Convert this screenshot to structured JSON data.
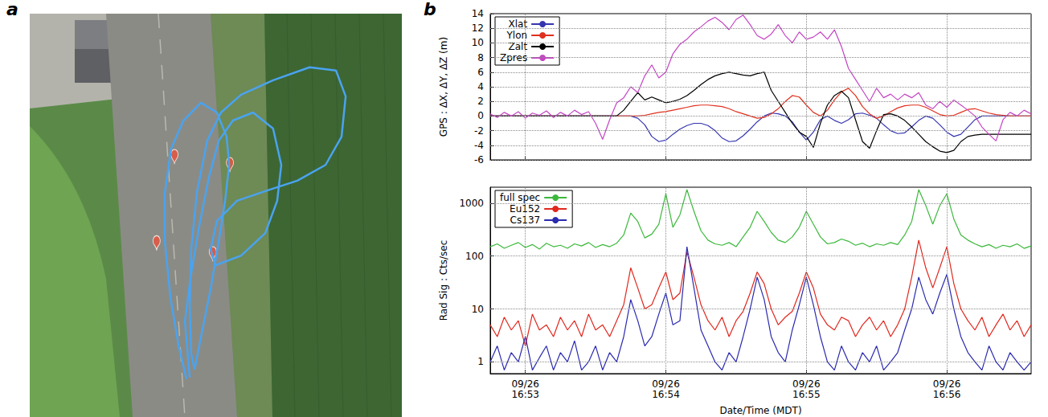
{
  "chart_data": [
    {
      "type": "line",
      "panel": "a",
      "x": [
        42.1,
        40.0,
        37.8,
        36.3,
        36.3,
        38.0,
        41.3,
        46.0,
        50.3,
        52.9,
        53.6,
        52.5,
        50.8,
        48.6,
        46.0,
        44.3,
        43.4,
        43.0,
        43.4,
        44.9,
        47.7,
        51.4,
        56.8,
        65.4,
        75.2,
        82.3,
        84.9,
        83.8,
        79.5,
        71.9,
        63.3,
        55.7,
        50.3,
        48.6,
        49.9,
        56.8,
        63.3,
        66.5,
        67.6,
        65.4,
        60.0,
        54.6,
        50.8,
        48.2,
        45.6,
        43.4,
        41.7,
        43.0
      ],
      "y": [
        9.4,
        17.7,
        29.7,
        43.6,
        55.6,
        66.5,
        73.5,
        77.9,
        75.5,
        69.5,
        62.5,
        53.6,
        43.6,
        31.7,
        19.7,
        11.8,
        15.7,
        27.7,
        41.6,
        55.6,
        68.5,
        75.5,
        79.9,
        83.5,
        86.7,
        85.9,
        79.5,
        69.5,
        62.5,
        58.6,
        56.0,
        53.6,
        48.6,
        41.6,
        37.6,
        40.0,
        45.6,
        53.6,
        62.5,
        71.5,
        75.5,
        73.5,
        68.5,
        59.6,
        47.6,
        35.7,
        23.7,
        9.8
      ],
      "color": "#4aa3ef",
      "points": {
        "x": [
          38.9,
          53.8,
          34.1,
          49.2
        ],
        "y": [
          60.6,
          58.6,
          39.2,
          36.5
        ],
        "color": "#e8533c",
        "marker": "pin"
      },
      "xlim": [
        0,
        100
      ],
      "ylim": [
        0,
        100
      ],
      "tick_labels": false
    },
    {
      "type": "line",
      "panel": "b",
      "ylabel": "GPS : ΔX, ΔY, ΔZ (m)",
      "x": [
        "16:52:45",
        "16:52:48",
        "16:52:51",
        "16:52:54",
        "16:52:57",
        "16:53:00",
        "16:53:03",
        "16:53:06",
        "16:53:09",
        "16:53:12",
        "16:53:15",
        "16:53:18",
        "16:53:21",
        "16:53:24",
        "16:53:27",
        "16:53:30",
        "16:53:33",
        "16:53:36",
        "16:53:39",
        "16:53:42",
        "16:53:45",
        "16:53:48",
        "16:53:51",
        "16:53:54",
        "16:53:57",
        "16:54:00",
        "16:54:03",
        "16:54:06",
        "16:54:09",
        "16:54:12",
        "16:54:15",
        "16:54:18",
        "16:54:21",
        "16:54:24",
        "16:54:27",
        "16:54:30",
        "16:54:33",
        "16:54:36",
        "16:54:39",
        "16:54:42",
        "16:54:45",
        "16:54:48",
        "16:54:51",
        "16:54:54",
        "16:54:57",
        "16:55:00",
        "16:55:03",
        "16:55:06",
        "16:55:09",
        "16:55:12",
        "16:55:15",
        "16:55:18",
        "16:55:21",
        "16:55:24",
        "16:55:27",
        "16:55:30",
        "16:55:33",
        "16:55:36",
        "16:55:39",
        "16:55:42",
        "16:55:45",
        "16:55:48",
        "16:55:51",
        "16:55:54",
        "16:55:57",
        "16:56:00",
        "16:56:03",
        "16:56:06",
        "16:56:09",
        "16:56:12",
        "16:56:15",
        "16:56:18",
        "16:56:21",
        "16:56:24",
        "16:56:27",
        "16:56:30",
        "16:56:33",
        "16:56:36"
      ],
      "series": [
        {
          "name": "Xlat",
          "color": "#3535b0",
          "values": [
            0,
            0,
            0,
            0,
            0,
            0,
            0,
            0,
            0,
            0,
            0,
            0,
            0,
            0,
            0,
            0,
            0,
            0,
            0,
            0,
            0,
            -0.3,
            -1.2,
            -2.8,
            -3.5,
            -3.3,
            -2.5,
            -1.8,
            -1.3,
            -1,
            -1,
            -1.3,
            -2,
            -3,
            -3.5,
            -3.4,
            -2.7,
            -1.8,
            -0.8,
            0,
            0.4,
            0.3,
            0,
            -0.8,
            -2.2,
            -3.3,
            -2.2,
            -0.5,
            0,
            -0.6,
            -1,
            -0.5,
            0.3,
            0.4,
            0.1,
            -0.3,
            -1.2,
            -2,
            -2.4,
            -2.3,
            -1.5,
            -0.6,
            0,
            -0.3,
            -1.2,
            -2.2,
            -2.8,
            -2.5,
            -1.5,
            -0.5,
            0,
            0,
            0,
            0,
            0,
            0,
            0,
            0
          ]
        },
        {
          "name": "Ylon",
          "color": "#e0301e",
          "values": [
            0,
            0,
            0,
            0,
            0,
            0,
            0,
            0,
            0,
            0,
            0,
            0,
            0,
            0,
            0,
            0,
            0,
            0,
            0,
            0,
            0,
            0,
            0.1,
            0.3,
            0.5,
            0.6,
            0.8,
            1,
            1.2,
            1.4,
            1.5,
            1.5,
            1.4,
            1.3,
            1,
            0.6,
            0.3,
            0,
            -0.3,
            -0.2,
            0.3,
            1,
            2,
            2.8,
            2.6,
            1.5,
            0.5,
            0,
            0.8,
            2.2,
            3.3,
            3.8,
            2.8,
            1.3,
            0.3,
            -0.3,
            0,
            0.6,
            1.1,
            1.4,
            1.5,
            1.5,
            1.2,
            0.7,
            0.2,
            0,
            0.1,
            0.5,
            0.9,
            1,
            0.7,
            0.4,
            0.2,
            0.1,
            0,
            0,
            0,
            0
          ]
        },
        {
          "name": "Zalt",
          "color": "#000000",
          "values": [
            0,
            0,
            0,
            0,
            0,
            0,
            0,
            0,
            0,
            0,
            0,
            0,
            0,
            0,
            0,
            0,
            0,
            0,
            0,
            0.8,
            2,
            3.2,
            2.2,
            2.6,
            2.2,
            1.8,
            2,
            2.3,
            2.8,
            3.5,
            4.3,
            5,
            5.5,
            5.8,
            6,
            5.8,
            5.6,
            5.5,
            5.8,
            6,
            3.5,
            2,
            0.5,
            -1,
            -2.2,
            -2.8,
            -4.3,
            -1,
            1.5,
            2.8,
            3.4,
            2.5,
            -0.5,
            -3.5,
            -4.4,
            -2,
            0.2,
            0.3,
            0,
            -0.6,
            -1.5,
            -2.5,
            -3.5,
            -4.2,
            -4.8,
            -5,
            -4.7,
            -3.5,
            -2.8,
            -2.6,
            -2.5,
            -2.5,
            -2.5,
            -2.5,
            -2.5,
            -2.5,
            -2.5,
            -2.5
          ]
        },
        {
          "name": "Zpres",
          "color": "#c445c4",
          "values": [
            0.3,
            -0.2,
            0.5,
            0,
            0.6,
            -0.3,
            0.4,
            0.1,
            0.7,
            -0.2,
            0.5,
            0,
            0.8,
            0.2,
            0.6,
            -1,
            -3.2,
            -0.5,
            1.8,
            2.5,
            4,
            3.2,
            5.5,
            7,
            5.2,
            6,
            8.5,
            9.8,
            10.5,
            11.5,
            12.2,
            13,
            13.5,
            12.8,
            11.8,
            13.2,
            13.8,
            12.5,
            11,
            10.5,
            11.2,
            12.5,
            11,
            10,
            11.5,
            10.5,
            10.8,
            11.5,
            10.5,
            11.8,
            9.5,
            6.5,
            5,
            3.5,
            2,
            3.8,
            2.5,
            3,
            2.2,
            3,
            2.5,
            3.2,
            1.5,
            1,
            2,
            1.2,
            2.2,
            1.5,
            0.8,
            0,
            -1.5,
            -2.5,
            -3.4,
            -0.5,
            0.5,
            0,
            0.8,
            0.3
          ]
        }
      ],
      "xlim": [
        "16:52:45",
        "16:56:36"
      ],
      "xticks": [
        {
          "value": "16:53:00",
          "label": "09/26 16:53"
        },
        {
          "value": "16:54:00",
          "label": "09/26 16:54"
        },
        {
          "value": "16:55:00",
          "label": "09/26 16:55"
        },
        {
          "value": "16:56:00",
          "label": "09/26 16:56"
        }
      ],
      "ylim": [
        -6,
        14
      ],
      "yticks": [
        -6,
        -4,
        -2,
        0,
        2,
        4,
        6,
        8,
        10,
        12,
        14
      ],
      "grid": true,
      "legend": "upper left",
      "tick_labels": "y"
    },
    {
      "type": "line",
      "ylabel": "Rad Sig : Cts/sec",
      "xlabel": "Date/Time (MDT)",
      "x": [
        "16:52:45",
        "16:52:48",
        "16:52:51",
        "16:52:54",
        "16:52:57",
        "16:53:00",
        "16:53:03",
        "16:53:06",
        "16:53:09",
        "16:53:12",
        "16:53:15",
        "16:53:18",
        "16:53:21",
        "16:53:24",
        "16:53:27",
        "16:53:30",
        "16:53:33",
        "16:53:36",
        "16:53:39",
        "16:53:42",
        "16:53:45",
        "16:53:48",
        "16:53:51",
        "16:53:54",
        "16:53:57",
        "16:54:00",
        "16:54:03",
        "16:54:06",
        "16:54:09",
        "16:54:12",
        "16:54:15",
        "16:54:18",
        "16:54:21",
        "16:54:24",
        "16:54:27",
        "16:54:30",
        "16:54:33",
        "16:54:36",
        "16:54:39",
        "16:54:42",
        "16:54:45",
        "16:54:48",
        "16:54:51",
        "16:54:54",
        "16:54:57",
        "16:55:00",
        "16:55:03",
        "16:55:06",
        "16:55:09",
        "16:55:12",
        "16:55:15",
        "16:55:18",
        "16:55:21",
        "16:55:24",
        "16:55:27",
        "16:55:30",
        "16:55:33",
        "16:55:36",
        "16:55:39",
        "16:55:42",
        "16:55:45",
        "16:55:48",
        "16:55:51",
        "16:55:54",
        "16:55:57",
        "16:56:00",
        "16:56:03",
        "16:56:06",
        "16:56:09",
        "16:56:12",
        "16:56:15",
        "16:56:18",
        "16:56:21",
        "16:56:24",
        "16:56:27",
        "16:56:30",
        "16:56:33",
        "16:56:36"
      ],
      "series": [
        {
          "name": "full spec",
          "color": "#3cb83c",
          "values": [
            150,
            170,
            140,
            160,
            180,
            145,
            165,
            135,
            175,
            150,
            160,
            140,
            170,
            155,
            180,
            145,
            165,
            150,
            175,
            250,
            650,
            450,
            220,
            260,
            400,
            1500,
            350,
            600,
            1800,
            700,
            300,
            200,
            170,
            160,
            180,
            150,
            230,
            350,
            700,
            450,
            280,
            200,
            180,
            230,
            350,
            700,
            400,
            230,
            170,
            180,
            210,
            190,
            160,
            175,
            150,
            170,
            160,
            180,
            165,
            250,
            450,
            1800,
            900,
            400,
            900,
            1500,
            500,
            250,
            200,
            170,
            150,
            165,
            140,
            160,
            150,
            170,
            140,
            155
          ]
        },
        {
          "name": "Eu152",
          "color": "#e0281e",
          "values": [
            5,
            3,
            7,
            4,
            6,
            2,
            8,
            4,
            5,
            3,
            7,
            4,
            6,
            3,
            8,
            4,
            5,
            3,
            6,
            12,
            60,
            25,
            10,
            12,
            25,
            50,
            15,
            20,
            120,
            40,
            12,
            6,
            4,
            7,
            3,
            6,
            9,
            20,
            50,
            30,
            10,
            5,
            7,
            9,
            20,
            50,
            25,
            8,
            5,
            4,
            7,
            6,
            3,
            5,
            7,
            4,
            6,
            3,
            5,
            10,
            40,
            200,
            60,
            25,
            60,
            150,
            30,
            10,
            6,
            4,
            7,
            3,
            5,
            8,
            4,
            6,
            3,
            5
          ]
        },
        {
          "name": "Cs137",
          "color": "#2a2ab0",
          "values": [
            1,
            2,
            0.7,
            1.5,
            1,
            3,
            0.7,
            1.2,
            2,
            0.7,
            1.5,
            1,
            2.5,
            0.7,
            1,
            2,
            0.7,
            1.5,
            1,
            3,
            15,
            6,
            2,
            3,
            8,
            20,
            5,
            6,
            150,
            25,
            4,
            2,
            1,
            0.7,
            1.5,
            1,
            3,
            10,
            40,
            15,
            3,
            1.5,
            1,
            4,
            12,
            40,
            12,
            3,
            1,
            0.7,
            2,
            1,
            0.7,
            1.5,
            1,
            2,
            0.7,
            1,
            1.5,
            4,
            10,
            40,
            15,
            8,
            20,
            45,
            10,
            3,
            1.5,
            1,
            0.7,
            2,
            1,
            0.7,
            1.5,
            1,
            0.7,
            1
          ]
        }
      ],
      "xlim": [
        "16:52:45",
        "16:56:36"
      ],
      "xticks": [
        {
          "value": "16:53:00",
          "label": "09/26 16:53"
        },
        {
          "value": "16:54:00",
          "label": "09/26 16:54"
        },
        {
          "value": "16:55:00",
          "label": "09/26 16:55"
        },
        {
          "value": "16:56:00",
          "label": "09/26 16:56"
        }
      ],
      "ylim": [
        0.6,
        2000
      ],
      "yticks": [
        1,
        10,
        100,
        1000
      ],
      "log": "y",
      "grid": true,
      "legend": "upper left"
    }
  ]
}
